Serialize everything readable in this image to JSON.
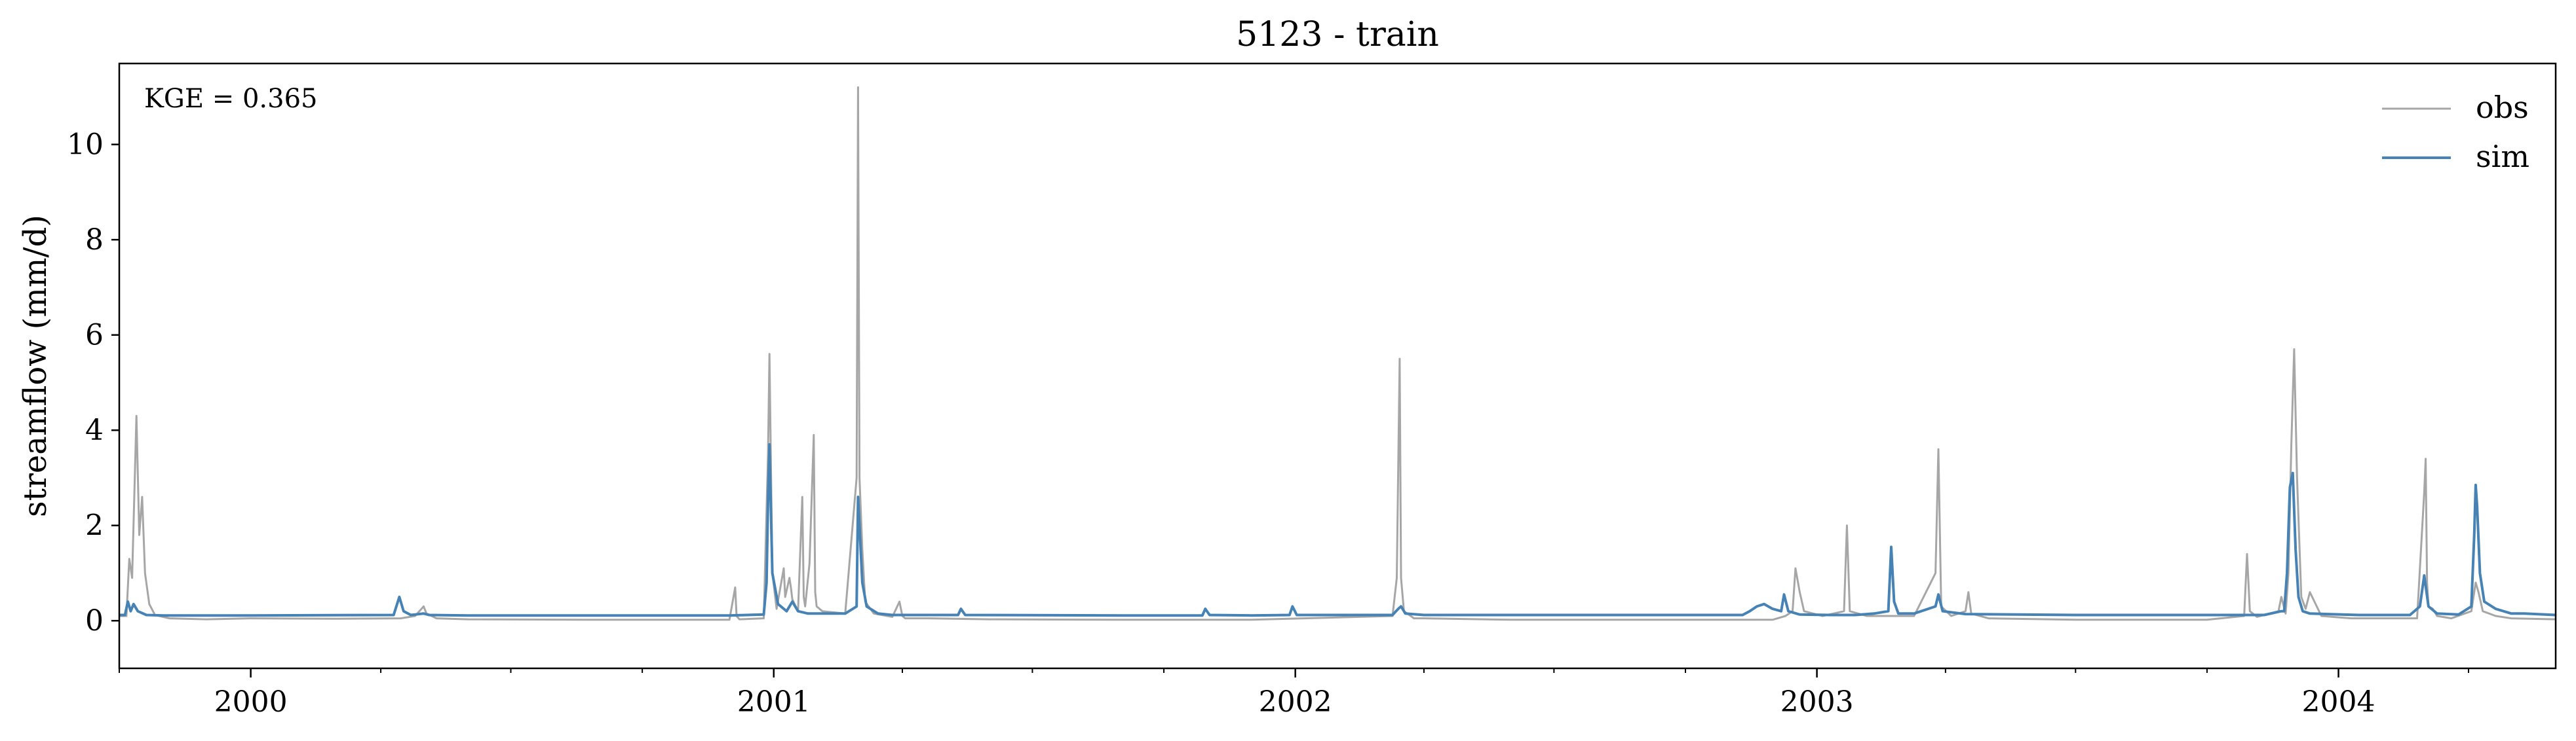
{
  "chart_data": {
    "type": "line",
    "title": "5123 - train",
    "ylabel": "streamflow (mm/d)",
    "xlabel": "",
    "annotation": "KGE = 0.365",
    "xlim": [
      "1999-10-01",
      "2004-06-01"
    ],
    "ylim": [
      -1,
      11.7
    ],
    "yticks": [
      0,
      2,
      4,
      6,
      8,
      10
    ],
    "ytick_labels": [
      "0",
      "2",
      "4",
      "6",
      "8",
      "10"
    ],
    "xticks": [
      "2000-01-01",
      "2001-01-01",
      "2002-01-01",
      "2003-01-01",
      "2004-01-01"
    ],
    "xtick_labels": [
      "2000",
      "2001",
      "2002",
      "2003",
      "2004"
    ],
    "legend_position": "top-right",
    "grid": false,
    "series": [
      {
        "name": "obs",
        "color": "#a6a6a6",
        "x": [
          "1999-10-01",
          "1999-10-06",
          "1999-10-08",
          "1999-10-10",
          "1999-10-13",
          "1999-10-15",
          "1999-10-17",
          "1999-10-19",
          "1999-10-22",
          "1999-10-26",
          "1999-11-05",
          "1999-12-01",
          "2000-01-01",
          "2000-03-01",
          "2000-04-15",
          "2000-04-25",
          "2000-05-01",
          "2000-05-03",
          "2000-05-10",
          "2000-06-01",
          "2000-09-01",
          "2000-12-01",
          "2000-12-05",
          "2000-12-06",
          "2000-12-08",
          "2000-12-25",
          "2000-12-28",
          "2000-12-29",
          "2000-12-31",
          "2001-01-03",
          "2001-01-08",
          "2001-01-09",
          "2001-01-12",
          "2001-01-13",
          "2001-01-14",
          "2001-01-18",
          "2001-01-21",
          "2001-01-22",
          "2001-01-23",
          "2001-01-26",
          "2001-01-29",
          "2001-01-30",
          "2001-01-31",
          "2001-02-04",
          "2001-02-20",
          "2001-02-28",
          "2001-03-01",
          "2001-03-02",
          "2001-03-04",
          "2001-03-06",
          "2001-03-12",
          "2001-03-25",
          "2001-03-30",
          "2001-04-01",
          "2001-04-03",
          "2001-04-20",
          "2001-06-01",
          "2001-09-01",
          "2001-12-01",
          "2002-03-10",
          "2002-03-13",
          "2002-03-15",
          "2002-03-16",
          "2002-03-18",
          "2002-03-25",
          "2002-04-01",
          "2002-06-01",
          "2002-09-01",
          "2002-12-01",
          "2002-12-10",
          "2002-12-15",
          "2002-12-17",
          "2002-12-20",
          "2002-12-23",
          "2003-01-05",
          "2003-01-20",
          "2003-01-22",
          "2003-01-24",
          "2003-02-05",
          "2003-02-15",
          "2003-03-10",
          "2003-03-25",
          "2003-03-27",
          "2003-03-29",
          "2003-04-05",
          "2003-04-15",
          "2003-04-17",
          "2003-04-19",
          "2003-05-01",
          "2003-07-01",
          "2003-10-01",
          "2003-10-27",
          "2003-10-29",
          "2003-10-31",
          "2003-11-05",
          "2003-11-20",
          "2003-11-22",
          "2003-11-25",
          "2003-11-27",
          "2003-11-29",
          "2003-12-01",
          "2003-12-03",
          "2003-12-06",
          "2003-12-09",
          "2003-12-12",
          "2003-12-20",
          "2004-01-10",
          "2004-02-25",
          "2004-03-01",
          "2004-03-02",
          "2004-03-03",
          "2004-03-04",
          "2004-03-07",
          "2004-03-10",
          "2004-03-20",
          "2004-04-03",
          "2004-04-06",
          "2004-04-08",
          "2004-04-11",
          "2004-04-20",
          "2004-05-01",
          "2004-06-01"
        ],
        "y": [
          0.1,
          0.1,
          1.3,
          0.9,
          4.3,
          1.8,
          2.6,
          1.0,
          0.35,
          0.12,
          0.05,
          0.03,
          0.05,
          0.04,
          0.05,
          0.1,
          0.3,
          0.15,
          0.05,
          0.03,
          0.02,
          0.02,
          0.7,
          0.1,
          0.03,
          0.05,
          3.5,
          5.6,
          1.0,
          0.25,
          1.1,
          0.5,
          0.9,
          0.7,
          0.45,
          0.2,
          2.6,
          0.5,
          0.3,
          1.2,
          3.9,
          0.6,
          0.3,
          0.2,
          0.15,
          3.0,
          11.2,
          3.0,
          1.5,
          0.4,
          0.15,
          0.08,
          0.4,
          0.1,
          0.05,
          0.05,
          0.03,
          0.02,
          0.02,
          0.1,
          0.9,
          5.5,
          0.9,
          0.2,
          0.05,
          0.05,
          0.02,
          0.02,
          0.02,
          0.1,
          0.2,
          1.1,
          0.6,
          0.2,
          0.1,
          0.2,
          2.0,
          0.2,
          0.1,
          0.1,
          0.1,
          1.0,
          3.6,
          0.3,
          0.1,
          0.2,
          0.6,
          0.15,
          0.05,
          0.02,
          0.02,
          0.1,
          1.4,
          0.2,
          0.08,
          0.2,
          0.5,
          0.15,
          1.0,
          3.7,
          5.7,
          3.0,
          0.5,
          0.25,
          0.6,
          0.1,
          0.05,
          0.05,
          2.7,
          3.4,
          0.8,
          0.3,
          0.25,
          0.1,
          0.05,
          0.2,
          0.8,
          0.6,
          0.2,
          0.1,
          0.05,
          0.03
        ]
      },
      {
        "name": "sim",
        "color": "#4682b4",
        "x": [
          "1999-10-01",
          "1999-10-05",
          "1999-10-07",
          "1999-10-09",
          "1999-10-11",
          "1999-10-14",
          "1999-10-20",
          "1999-11-01",
          "2000-01-01",
          "2000-04-10",
          "2000-04-14",
          "2000-04-17",
          "2000-04-22",
          "2000-05-01",
          "2000-05-05",
          "2000-06-01",
          "2000-12-01",
          "2000-12-25",
          "2000-12-27",
          "2000-12-28",
          "2000-12-29",
          "2000-12-31",
          "2001-01-04",
          "2001-01-10",
          "2001-01-14",
          "2001-01-18",
          "2001-01-25",
          "2001-02-20",
          "2001-02-28",
          "2001-03-01",
          "2001-03-02",
          "2001-03-04",
          "2001-03-07",
          "2001-03-15",
          "2001-03-25",
          "2001-05-10",
          "2001-05-12",
          "2001-05-15",
          "2001-09-01",
          "2001-10-28",
          "2001-10-30",
          "2001-11-02",
          "2001-12-01",
          "2001-12-28",
          "2001-12-30",
          "2002-01-02",
          "2002-03-10",
          "2002-03-14",
          "2002-03-16",
          "2002-03-19",
          "2002-04-01",
          "2002-07-01",
          "2002-11-10",
          "2002-11-15",
          "2002-11-20",
          "2002-11-25",
          "2002-12-01",
          "2002-12-07",
          "2002-12-09",
          "2002-12-12",
          "2002-12-20",
          "2003-01-10",
          "2003-01-28",
          "2003-02-10",
          "2003-02-20",
          "2003-02-22",
          "2003-02-24",
          "2003-02-27",
          "2003-03-10",
          "2003-03-25",
          "2003-03-27",
          "2003-03-30",
          "2003-04-15",
          "2003-07-01",
          "2003-10-01",
          "2003-11-10",
          "2003-11-22",
          "2003-11-24",
          "2003-11-26",
          "2003-11-28",
          "2003-11-30",
          "2003-12-02",
          "2003-12-04",
          "2003-12-07",
          "2003-12-12",
          "2004-01-15",
          "2004-02-20",
          "2004-02-27",
          "2004-03-01",
          "2004-03-04",
          "2004-03-10",
          "2004-03-25",
          "2004-04-03",
          "2004-04-05",
          "2004-04-06",
          "2004-04-07",
          "2004-04-09",
          "2004-04-12",
          "2004-04-20",
          "2004-05-01",
          "2004-05-10",
          "2004-06-01"
        ],
        "y": [
          0.12,
          0.12,
          0.4,
          0.2,
          0.35,
          0.2,
          0.12,
          0.11,
          0.11,
          0.12,
          0.5,
          0.2,
          0.12,
          0.15,
          0.12,
          0.11,
          0.11,
          0.13,
          0.8,
          2.5,
          3.7,
          1.0,
          0.35,
          0.2,
          0.4,
          0.2,
          0.15,
          0.15,
          0.3,
          2.6,
          2.0,
          0.8,
          0.3,
          0.15,
          0.12,
          0.12,
          0.25,
          0.12,
          0.11,
          0.11,
          0.25,
          0.12,
          0.11,
          0.12,
          0.3,
          0.12,
          0.12,
          0.25,
          0.3,
          0.15,
          0.12,
          0.12,
          0.12,
          0.2,
          0.3,
          0.35,
          0.25,
          0.2,
          0.55,
          0.2,
          0.13,
          0.12,
          0.12,
          0.15,
          0.2,
          1.55,
          0.4,
          0.15,
          0.15,
          0.3,
          0.55,
          0.2,
          0.14,
          0.12,
          0.12,
          0.12,
          0.2,
          0.2,
          1.0,
          2.8,
          3.1,
          1.5,
          0.5,
          0.2,
          0.15,
          0.12,
          0.12,
          0.3,
          0.95,
          0.3,
          0.15,
          0.13,
          0.3,
          1.8,
          2.85,
          2.4,
          1.0,
          0.4,
          0.25,
          0.15,
          0.15,
          0.12
        ]
      }
    ]
  }
}
